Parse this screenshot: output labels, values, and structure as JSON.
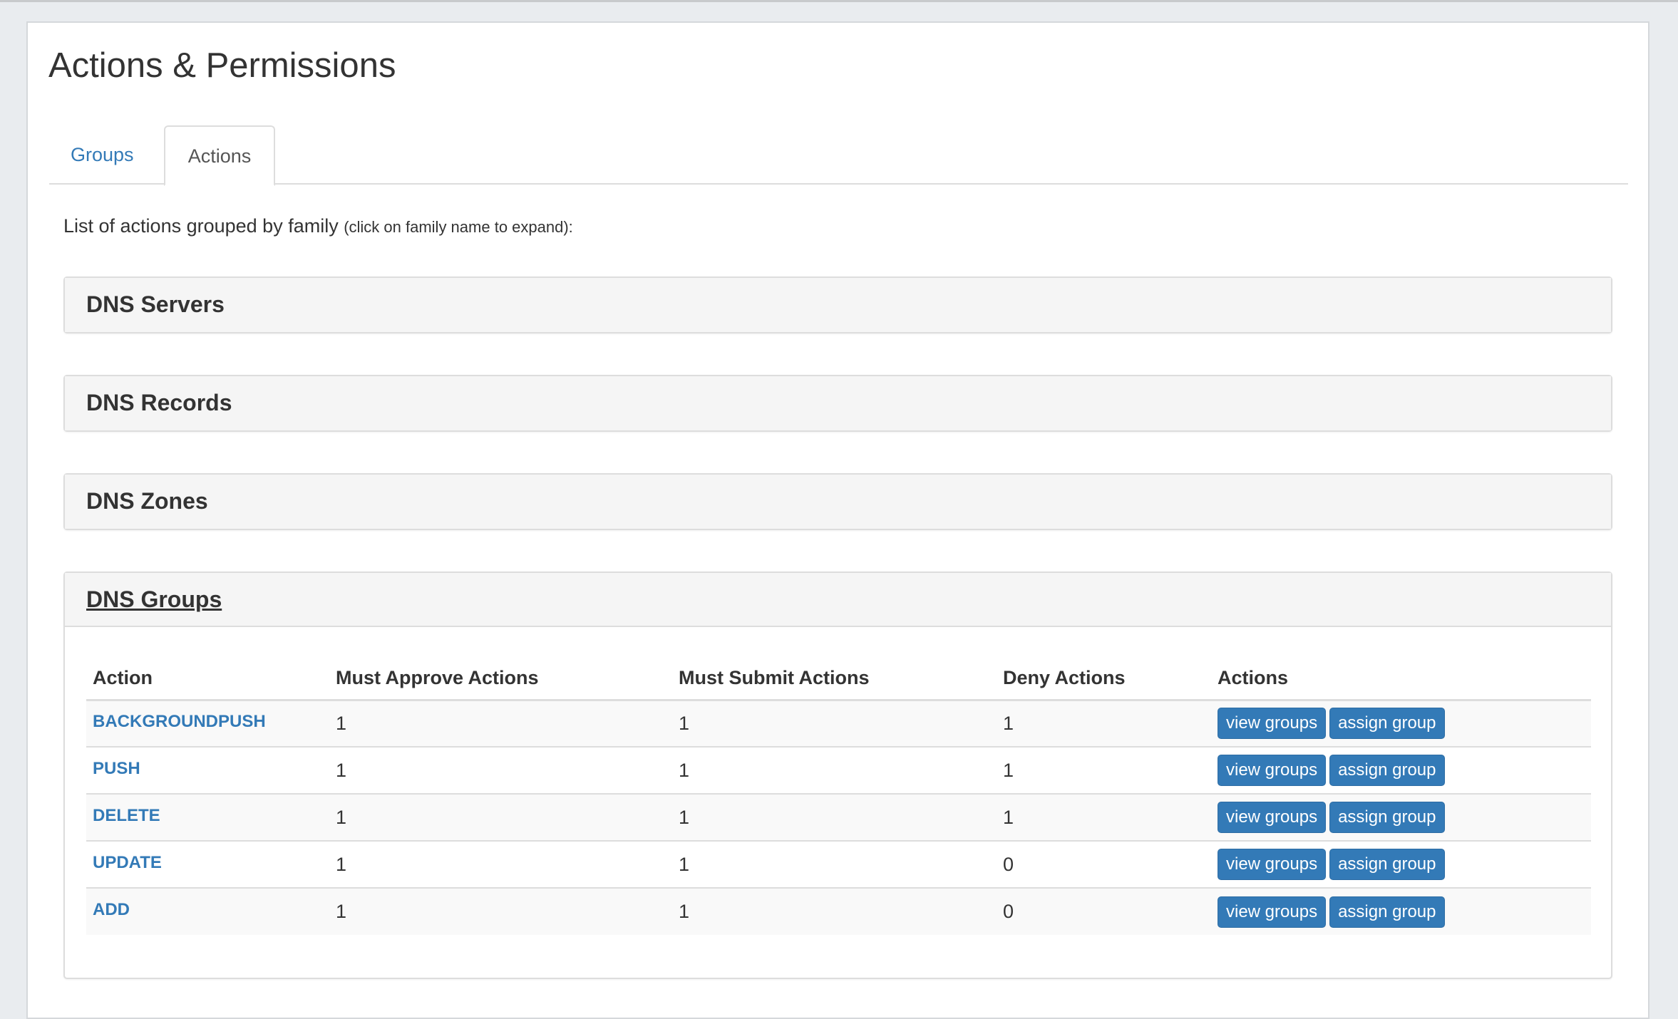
{
  "page_title": "Actions & Permissions",
  "tabs": [
    {
      "label": "Groups",
      "active": false
    },
    {
      "label": "Actions",
      "active": true
    }
  ],
  "intro": {
    "text": "List of actions grouped by family ",
    "hint": "(click on family name to expand):"
  },
  "families": [
    {
      "name": "DNS Servers",
      "expanded": false
    },
    {
      "name": "DNS Records",
      "expanded": false
    },
    {
      "name": "DNS Zones",
      "expanded": false
    },
    {
      "name": "DNS Groups",
      "expanded": true
    }
  ],
  "table": {
    "headers": [
      "Action",
      "Must Approve Actions",
      "Must Submit Actions",
      "Deny Actions",
      "Actions"
    ],
    "rows": [
      {
        "action": "BACKGROUNDPUSH",
        "approve": "1",
        "submit": "1",
        "deny": "1"
      },
      {
        "action": "PUSH",
        "approve": "1",
        "submit": "1",
        "deny": "1"
      },
      {
        "action": "DELETE",
        "approve": "1",
        "submit": "1",
        "deny": "1"
      },
      {
        "action": "UPDATE",
        "approve": "1",
        "submit": "1",
        "deny": "0"
      },
      {
        "action": "ADD",
        "approve": "1",
        "submit": "1",
        "deny": "0"
      }
    ],
    "view_label": "view groups",
    "assign_label": "assign group"
  },
  "colors": {
    "link": "#337ab7",
    "button": "#337ab7"
  }
}
